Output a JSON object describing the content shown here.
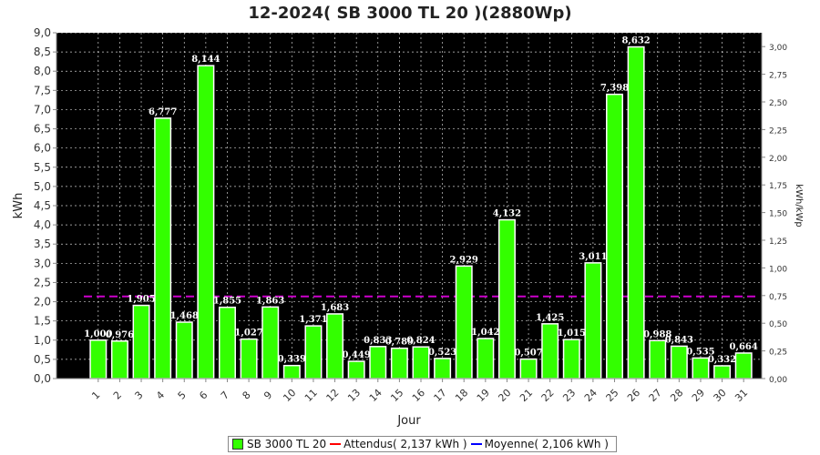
{
  "chart_data": {
    "type": "bar",
    "title": "12-2024( SB 3000 TL 20 )(2880Wp)",
    "xlabel": "Jour",
    "ylabel": "kWh",
    "y2label": "kWh/kWp",
    "categories": [
      "1",
      "2",
      "3",
      "4",
      "5",
      "6",
      "7",
      "8",
      "9",
      "10",
      "11",
      "12",
      "13",
      "14",
      "15",
      "16",
      "17",
      "18",
      "19",
      "20",
      "21",
      "22",
      "23",
      "24",
      "25",
      "26",
      "27",
      "28",
      "29",
      "30",
      "31"
    ],
    "values": [
      1.0,
      0.976,
      1.905,
      6.777,
      1.468,
      8.144,
      1.855,
      1.027,
      1.863,
      0.339,
      1.371,
      1.683,
      0.449,
      0.833,
      0.789,
      0.824,
      0.523,
      2.929,
      1.042,
      4.132,
      0.507,
      1.425,
      1.015,
      3.011,
      7.398,
      8.632,
      0.988,
      0.843,
      0.535,
      0.332,
      0.664
    ],
    "data_labels": [
      "1,000",
      "0,976",
      "1,905",
      "6,777",
      "1,468",
      "8,144",
      "1,855",
      "1,027",
      "1,863",
      "0,339",
      "1,371",
      "1,683",
      "0,449",
      "0,833",
      "0,789",
      "0,824",
      "0,523",
      "2,929",
      "1,042",
      "4,132",
      "0,507",
      "1,425",
      "1,015",
      "3,011",
      "7,398",
      "8,632",
      "0,988",
      "0,843",
      "0,535",
      "0,332",
      "0,664"
    ],
    "ylim": [
      0,
      9
    ],
    "yticks": [
      "0,0",
      "0,5",
      "1,0",
      "1,5",
      "2,0",
      "2,5",
      "3,0",
      "3,5",
      "4,0",
      "4,5",
      "5,0",
      "5,5",
      "6,0",
      "6,5",
      "7,0",
      "7,5",
      "8,0",
      "8,5",
      "9,0"
    ],
    "y2lim": [
      0,
      3.125
    ],
    "y2ticks": [
      "0,00",
      "0,25",
      "0,50",
      "0,75",
      "1,00",
      "1,25",
      "1,50",
      "1,75",
      "2,00",
      "2,25",
      "2,50",
      "2,75",
      "3,00"
    ],
    "attendu": 2.137,
    "moyenne": 2.106,
    "grid": true,
    "legend_position": "bottom",
    "legend": [
      {
        "label": "SB 3000 TL 20",
        "kind": "box",
        "color": "#33ff00"
      },
      {
        "label": "Attendus( 2,137 kWh )",
        "kind": "line",
        "color": "#ff0000"
      },
      {
        "label": "Moyenne( 2,106 kWh )",
        "kind": "line",
        "color": "#0000ff"
      }
    ],
    "colors": {
      "plot_background": "#000000",
      "bar_fill": "#33ff00",
      "bar_stroke": "#ffffff",
      "grid": "#ffffff",
      "value_label": "#ffffff",
      "reference_line": "#cc00cc"
    }
  }
}
